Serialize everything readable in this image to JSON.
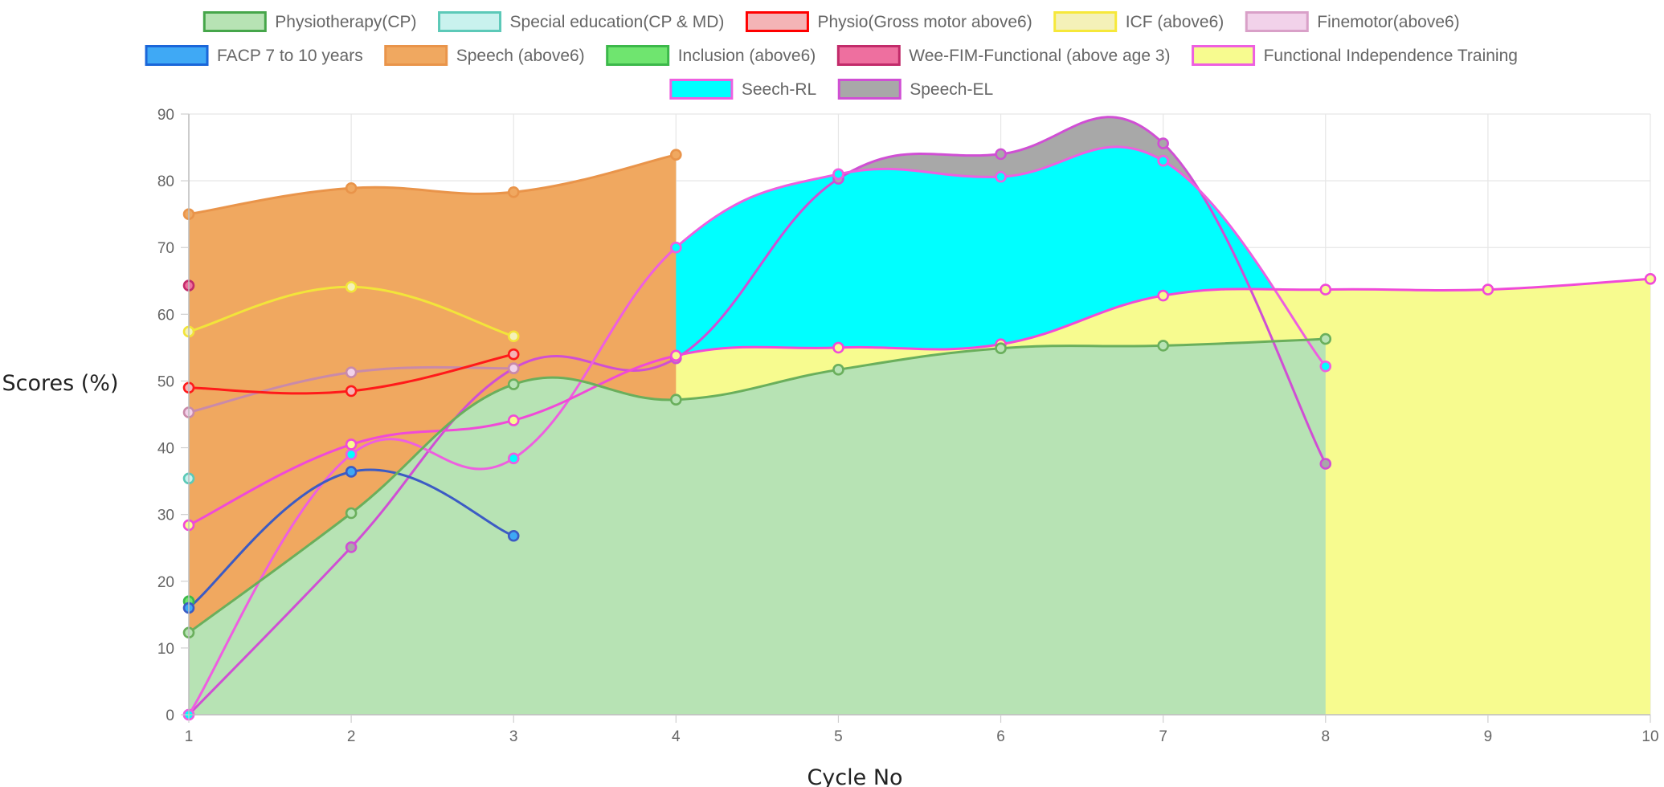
{
  "chart_data": {
    "type": "area",
    "xlabel": "Cycle No",
    "ylabel": "Scores (%)",
    "xlim": [
      1,
      10
    ],
    "ylim": [
      0,
      90
    ],
    "x_ticks": [
      "1",
      "2",
      "3",
      "4",
      "5",
      "6",
      "7",
      "8",
      "9",
      "10"
    ],
    "y_ticks": [
      "0",
      "10",
      "20",
      "30",
      "40",
      "50",
      "60",
      "70",
      "80",
      "90"
    ],
    "grid": true,
    "legend_position": "top-center",
    "series": [
      {
        "name": "Physiotherapy(CP)",
        "color": "#46a64a",
        "fill": "#b7e3b4",
        "line_color": "#6aaf5c",
        "fill_area": true,
        "x": [
          1,
          2,
          3,
          4,
          5,
          6,
          7,
          8
        ],
        "values": [
          12.3,
          30.2,
          49.5,
          47.2,
          51.7,
          54.9,
          55.3,
          56.3
        ]
      },
      {
        "name": "Special education(CP & MD)",
        "color": "#5cc9b8",
        "fill": "#c9f2ee",
        "line_color": "#5cc9b8",
        "fill_area": true,
        "x": [
          1
        ],
        "values": [
          35.4
        ]
      },
      {
        "name": "Physio(Gross motor above6)",
        "color": "#ff0000",
        "fill": "#f4b4b6",
        "line_color": "#ff1a1a",
        "fill_area": false,
        "x": [
          1,
          2,
          3
        ],
        "values": [
          49.0,
          48.5,
          54.0
        ]
      },
      {
        "name": "ICF (above6)",
        "color": "#f6e83a",
        "fill": "#f4f1b8",
        "line_color": "#f2e43a",
        "fill_area": false,
        "x": [
          1,
          2,
          3
        ],
        "values": [
          57.4,
          64.1,
          56.7
        ]
      },
      {
        "name": "Finemotor(above6)",
        "color": "#d9a0c8",
        "fill": "#f2d2ea",
        "line_color": "#c98aa9",
        "fill_area": false,
        "x": [
          1,
          2,
          3
        ],
        "values": [
          45.3,
          51.3,
          51.9
        ]
      },
      {
        "name": "FACP 7 to 10 years",
        "color": "#1a66d9",
        "fill": "#3fa9f5",
        "line_color": "#3c5bc4",
        "fill_area": false,
        "x": [
          1,
          2,
          3
        ],
        "values": [
          16.0,
          36.4,
          26.8
        ]
      },
      {
        "name": "Speech (above6)",
        "color": "#e9944a",
        "fill": "#f0a860",
        "line_color": "#e9944a",
        "fill_area": true,
        "x": [
          1,
          2,
          3,
          4
        ],
        "values": [
          75.0,
          78.9,
          78.3,
          83.9
        ]
      },
      {
        "name": "Inclusion (above6)",
        "color": "#3cb84a",
        "fill": "#6fe56f",
        "line_color": "#3cb84a",
        "fill_area": false,
        "x": [
          1
        ],
        "values": [
          17.0
        ]
      },
      {
        "name": "Wee-FIM-Functional (above age 3)",
        "color": "#c22b6a",
        "fill": "#ee6f9f",
        "line_color": "#c22b6a",
        "fill_area": false,
        "x": [
          1
        ],
        "values": [
          64.3
        ]
      },
      {
        "name": "Functional Independence Training",
        "color": "#ee5fe0",
        "fill": "#f7fb8f",
        "line_color": "#f04ad8",
        "fill_area": true,
        "x": [
          1,
          2,
          3,
          4,
          5,
          6,
          7,
          8,
          9,
          10
        ],
        "values": [
          28.4,
          40.5,
          44.1,
          53.8,
          55.0,
          55.5,
          62.8,
          63.7,
          63.7,
          65.3
        ]
      },
      {
        "name": "Seech-RL",
        "color": "#ee5fe0",
        "fill": "#00ffff",
        "line_color": "#ee5fe0",
        "fill_area": true,
        "x": [
          1,
          2,
          3,
          4,
          5,
          6,
          7,
          8
        ],
        "values": [
          0,
          39.0,
          38.4,
          70.0,
          81.0,
          80.6,
          83.0,
          52.2
        ]
      },
      {
        "name": "Speech-EL",
        "color": "#d04fd4",
        "fill": "#a8a8a8",
        "line_color": "#d04fd4",
        "fill_area": true,
        "x": [
          1,
          2,
          3,
          4,
          5,
          6,
          7,
          8
        ],
        "values": [
          0,
          25.1,
          51.9,
          53.4,
          80.3,
          84.0,
          85.6,
          37.6
        ]
      }
    ]
  }
}
